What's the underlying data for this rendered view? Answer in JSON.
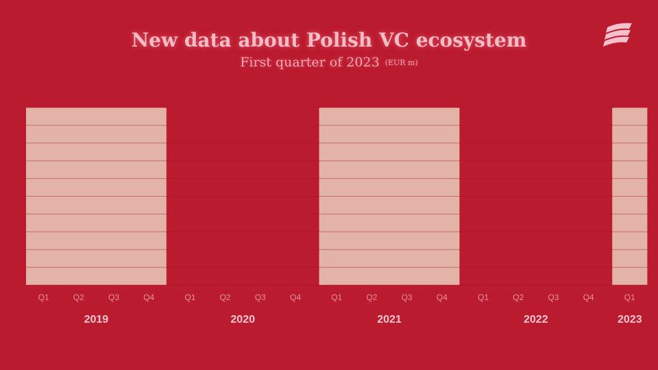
{
  "header": {
    "title": "New data about Polish VC ecosystem",
    "subtitle": "First quarter of 2023",
    "unit": "(EUR m)"
  },
  "logo": {
    "icon": "stacked-waves-icon"
  },
  "colors": {
    "background": "#bb1b2e",
    "band": "#e2b3a6",
    "grid": "#a5162a",
    "quarter_label": "#f08fa3",
    "year_label": "#f8c6cf"
  },
  "chart_data": {
    "type": "bar",
    "title": "New data about Polish VC ecosystem",
    "subtitle": "First quarter of 2023",
    "unit": "EUR m",
    "grid": true,
    "groups": [
      {
        "year": "2019",
        "quarters": [
          "Q1",
          "Q2",
          "Q3",
          "Q4"
        ],
        "highlighted": true
      },
      {
        "year": "2020",
        "quarters": [
          "Q1",
          "Q2",
          "Q3",
          "Q4"
        ],
        "highlighted": false
      },
      {
        "year": "2021",
        "quarters": [
          "Q1",
          "Q2",
          "Q3",
          "Q4"
        ],
        "highlighted": true
      },
      {
        "year": "2022",
        "quarters": [
          "Q1",
          "Q2",
          "Q3",
          "Q4"
        ],
        "highlighted": false
      },
      {
        "year": "2023",
        "quarters": [
          "Q1"
        ],
        "highlighted": true
      }
    ]
  }
}
